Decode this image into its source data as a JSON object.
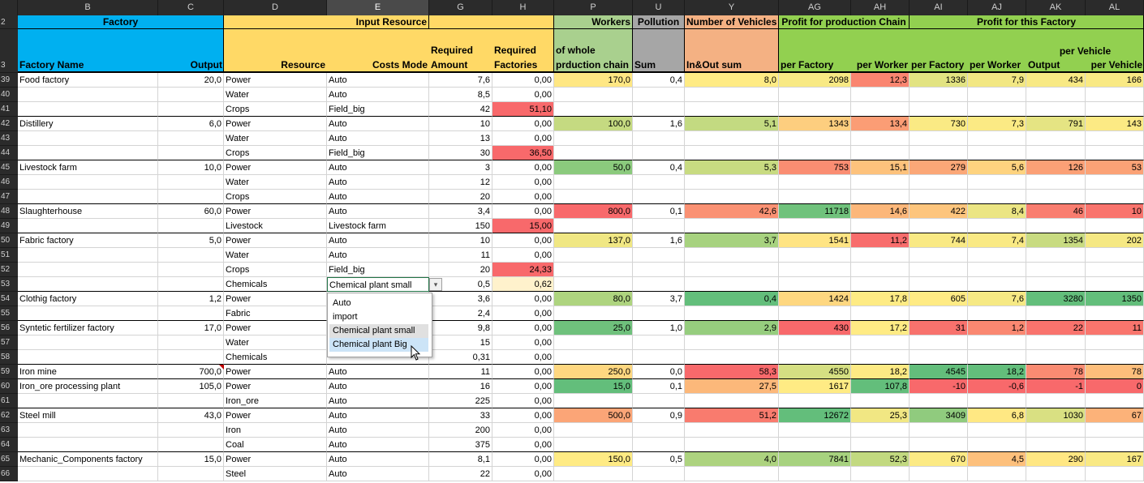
{
  "column_letters": [
    "B",
    "C",
    "D",
    "E",
    "G",
    "H",
    "P",
    "U",
    "Y",
    "AG",
    "AH",
    "AI",
    "AJ",
    "AK",
    "AL"
  ],
  "header": {
    "row_labels": [
      "2",
      "3"
    ],
    "groups": {
      "factory": "Factory",
      "input_resource": "Input Resource",
      "workers": "Workers",
      "pollution": "Pollution",
      "vehicles": "Number of Vehicles",
      "profit_chain": "Profit for production Chain",
      "profit_factory": "Profit for this Factory"
    },
    "sub": {
      "factory_name": "Factory Name",
      "output": "Output",
      "resource": "Resource",
      "costs_mode": "Costs Mode",
      "required_amount": "Required Amount",
      "required_factories": "Required Factories",
      "workers_sub": "of whole prduction chain",
      "pollution_sub": "Sum",
      "vehicles_sub": "In&Out sum",
      "chain_per_factory": "per Factory",
      "chain_per_worker": "per Worker",
      "fac_per_factory": "per Factory",
      "fac_per_worker": "per Worker",
      "fac_per_vehicle": "per Vehicle",
      "fac_output": "Output",
      "fac_per_vehicle2": "per Vehicle"
    }
  },
  "rows": [
    {
      "row": "39",
      "name": "Food factory",
      "output": "20,0",
      "resource": "Power",
      "mode": "Auto",
      "amount": "7,6",
      "factories": "0,00",
      "workers": "170,0",
      "pollution": "0,4",
      "vehicles": "8,0",
      "chain_pf": "2098",
      "chain_pw": "12,3",
      "fac_pf": "1336",
      "fac_pw": "7,9",
      "fac_out": "434",
      "fac_pv": "166"
    },
    {
      "row": "40",
      "resource": "Water",
      "mode": "Auto",
      "amount": "8,5",
      "factories": "0,00"
    },
    {
      "row": "41",
      "resource": "Crops",
      "mode": "Field_big",
      "amount": "42",
      "factories": "51,10"
    },
    {
      "row": "42",
      "name": "Distillery",
      "output": "6,0",
      "resource": "Power",
      "mode": "Auto",
      "amount": "10",
      "factories": "0,00",
      "workers": "100,0",
      "pollution": "1,6",
      "vehicles": "5,1",
      "chain_pf": "1343",
      "chain_pw": "13,4",
      "fac_pf": "730",
      "fac_pw": "7,3",
      "fac_out": "791",
      "fac_pv": "143"
    },
    {
      "row": "43",
      "resource": "Water",
      "mode": "Auto",
      "amount": "13",
      "factories": "0,00"
    },
    {
      "row": "44",
      "resource": "Crops",
      "mode": "Field_big",
      "amount": "30",
      "factories": "36,50"
    },
    {
      "row": "45",
      "name": "Livestock farm",
      "output": "10,0",
      "resource": "Power",
      "mode": "Auto",
      "amount": "3",
      "factories": "0,00",
      "workers": "50,0",
      "pollution": "0,4",
      "vehicles": "5,3",
      "chain_pf": "753",
      "chain_pw": "15,1",
      "fac_pf": "279",
      "fac_pw": "5,6",
      "fac_out": "126",
      "fac_pv": "53"
    },
    {
      "row": "46",
      "resource": "Water",
      "mode": "Auto",
      "amount": "12",
      "factories": "0,00"
    },
    {
      "row": "47",
      "resource": "Crops",
      "mode": "Auto",
      "amount": "20",
      "factories": "0,00"
    },
    {
      "row": "48",
      "name": "Slaughterhouse",
      "output": "60,0",
      "resource": "Power",
      "mode": "Auto",
      "amount": "3,4",
      "factories": "0,00",
      "workers": "800,0",
      "pollution": "0,1",
      "vehicles": "42,6",
      "chain_pf": "11718",
      "chain_pw": "14,6",
      "fac_pf": "422",
      "fac_pw": "8,4",
      "fac_out": "46",
      "fac_pv": "10"
    },
    {
      "row": "49",
      "resource": "Livestock",
      "mode": "Livestock farm",
      "amount": "150",
      "factories": "15,00"
    },
    {
      "row": "50",
      "name": "Fabric factory",
      "output": "5,0",
      "resource": "Power",
      "mode": "Auto",
      "amount": "10",
      "factories": "0,00",
      "workers": "137,0",
      "pollution": "1,6",
      "vehicles": "3,7",
      "chain_pf": "1541",
      "chain_pw": "11,2",
      "fac_pf": "744",
      "fac_pw": "7,4",
      "fac_out": "1354",
      "fac_pv": "202"
    },
    {
      "row": "51",
      "resource": "Water",
      "mode": "Auto",
      "amount": "11",
      "factories": "0,00"
    },
    {
      "row": "52",
      "resource": "Crops",
      "mode": "Field_big",
      "amount": "20",
      "factories": "24,33"
    },
    {
      "row": "53",
      "resource": "Chemicals",
      "mode": "Chemical plant small",
      "amount": "0,5",
      "factories": "0,62"
    },
    {
      "row": "54",
      "name": "Clothig factory",
      "output": "1,2",
      "resource": "Power",
      "mode": "",
      "amount": "3,6",
      "factories": "0,00",
      "workers": "80,0",
      "pollution": "3,7",
      "vehicles": "0,4",
      "chain_pf": "1424",
      "chain_pw": "17,8",
      "fac_pf": "605",
      "fac_pw": "7,6",
      "fac_out": "3280",
      "fac_pv": "1350"
    },
    {
      "row": "55",
      "resource": "Fabric",
      "mode": "",
      "amount": "2,4",
      "factories": "0,00"
    },
    {
      "row": "56",
      "name": "Syntetic fertilizer factory",
      "output": "17,0",
      "resource": "Power",
      "mode": "",
      "amount": "9,8",
      "factories": "0,00",
      "workers": "25,0",
      "pollution": "1,0",
      "vehicles": "2,9",
      "chain_pf": "430",
      "chain_pw": "17,2",
      "fac_pf": "31",
      "fac_pw": "1,2",
      "fac_out": "22",
      "fac_pv": "11"
    },
    {
      "row": "57",
      "resource": "Water",
      "mode": "",
      "amount": "15",
      "factories": "0,00"
    },
    {
      "row": "58",
      "resource": "Chemicals",
      "mode": "",
      "amount": "0,31",
      "factories": "0,00"
    },
    {
      "row": "59",
      "name": "Iron mine",
      "output": "700,0",
      "resource": "Power",
      "mode": "Auto",
      "amount": "11",
      "factories": "0,00",
      "workers": "250,0",
      "pollution": "0,0",
      "vehicles": "58,3",
      "chain_pf": "4550",
      "chain_pw": "18,2",
      "fac_pf": "4545",
      "fac_pw": "18,2",
      "fac_out": "78",
      "fac_pv": "78"
    },
    {
      "row": "60",
      "name": "Iron_ore processing plant",
      "output": "105,0",
      "resource": "Power",
      "mode": "Auto",
      "amount": "16",
      "factories": "0,00",
      "workers": "15,0",
      "pollution": "0,1",
      "vehicles": "27,5",
      "chain_pf": "1617",
      "chain_pw": "107,8",
      "fac_pf": "-10",
      "fac_pw": "-0,6",
      "fac_out": "-1",
      "fac_pv": "0"
    },
    {
      "row": "61",
      "resource": "Iron_ore",
      "mode": "Auto",
      "amount": "225",
      "factories": "0,00"
    },
    {
      "row": "62",
      "name": "Steel mill",
      "output": "43,0",
      "resource": "Power",
      "mode": "Auto",
      "amount": "33",
      "factories": "0,00",
      "workers": "500,0",
      "pollution": "0,9",
      "vehicles": "51,2",
      "chain_pf": "12672",
      "chain_pw": "25,3",
      "fac_pf": "3409",
      "fac_pw": "6,8",
      "fac_out": "1030",
      "fac_pv": "67"
    },
    {
      "row": "63",
      "resource": "Iron",
      "mode": "Auto",
      "amount": "200",
      "factories": "0,00"
    },
    {
      "row": "64",
      "resource": "Coal",
      "mode": "Auto",
      "amount": "375",
      "factories": "0,00"
    },
    {
      "row": "65",
      "name": "Mechanic_Components factory",
      "output": "15,0",
      "resource": "Power",
      "mode": "Auto",
      "amount": "8,1",
      "factories": "0,00",
      "workers": "150,0",
      "pollution": "0,5",
      "vehicles": "4,0",
      "chain_pf": "7841",
      "chain_pw": "52,3",
      "fac_pf": "670",
      "fac_pw": "4,5",
      "fac_out": "290",
      "fac_pv": "167"
    },
    {
      "row": "66",
      "resource": "Steel",
      "mode": "Auto",
      "amount": "22",
      "factories": "0,00"
    }
  ],
  "dropdown": {
    "options": [
      "Auto",
      "import",
      "Chemical plant small",
      "Chemical plant Big"
    ],
    "selected": "Chemical plant small",
    "hovered": "Chemical plant Big"
  },
  "colors": {
    "header_blue": "#00b0f0",
    "header_yellow": "#ffd966",
    "header_green_light": "#a9d08e",
    "header_grey": "#a6a6a6",
    "header_salmon": "#f4b183",
    "header_green": "#92d050",
    "red_fill": "#f8696b"
  }
}
